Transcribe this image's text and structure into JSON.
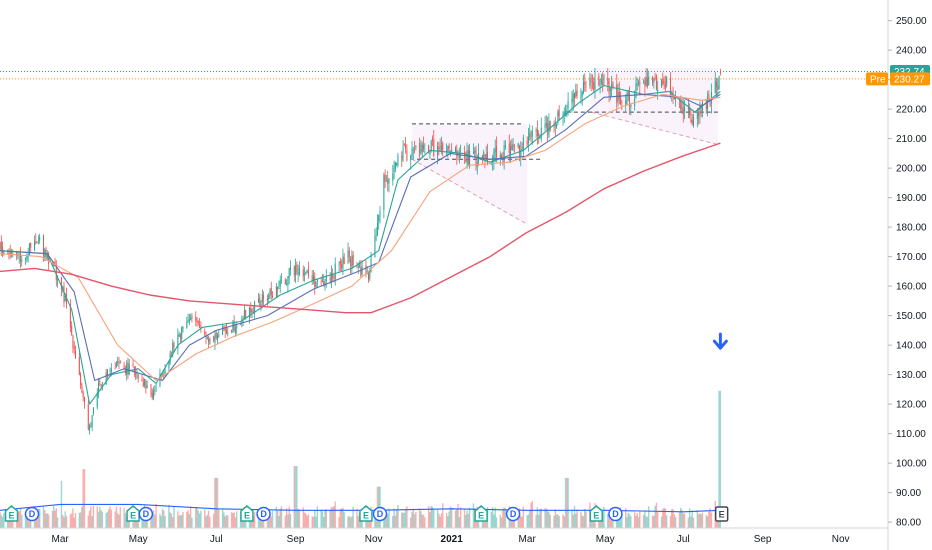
{
  "chart_data": {
    "type": "candlestick",
    "y_axis": {
      "position": "right",
      "ylim": [
        78,
        257
      ],
      "ticks": [
        80,
        90,
        100,
        110,
        120,
        130,
        140,
        150,
        160,
        170,
        180,
        190,
        200,
        210,
        220,
        230,
        240,
        250
      ],
      "tick_labels": [
        "80.00",
        "90.00",
        "100.00",
        "110.00",
        "120.00",
        "130.00",
        "140.00",
        "150.00",
        "160.00",
        "170.00",
        "180.00",
        "190.00",
        "200.00",
        "210.00",
        "220.00",
        "230.00",
        "240.00",
        "250.00"
      ]
    },
    "x_axis": {
      "range": [
        "2020-01-14",
        "2021-12-08"
      ],
      "ticks": [
        {
          "date": "2020-03-01",
          "label": "Mar",
          "bold": false
        },
        {
          "date": "2020-05-01",
          "label": "May",
          "bold": false
        },
        {
          "date": "2020-07-01",
          "label": "Jul",
          "bold": false
        },
        {
          "date": "2020-09-01",
          "label": "Sep",
          "bold": false
        },
        {
          "date": "2020-11-01",
          "label": "Nov",
          "bold": false
        },
        {
          "date": "2021-01-01",
          "label": "2021",
          "bold": true
        },
        {
          "date": "2021-03-01",
          "label": "Mar",
          "bold": false
        },
        {
          "date": "2021-05-01",
          "label": "May",
          "bold": false
        },
        {
          "date": "2021-07-01",
          "label": "Jul",
          "bold": false
        },
        {
          "date": "2021-09-01",
          "label": "Sep",
          "bold": false
        },
        {
          "date": "2021-11-01",
          "label": "Nov",
          "bold": false
        }
      ]
    },
    "price_anchors": [
      [
        "2020-01-14",
        173
      ],
      [
        "2020-01-31",
        170
      ],
      [
        "2020-02-14",
        175
      ],
      [
        "2020-02-24",
        168
      ],
      [
        "2020-03-05",
        155
      ],
      [
        "2020-03-16",
        130
      ],
      [
        "2020-03-23",
        110
      ],
      [
        "2020-03-31",
        127
      ],
      [
        "2020-04-15",
        133
      ],
      [
        "2020-04-30",
        131
      ],
      [
        "2020-05-12",
        123
      ],
      [
        "2020-05-26",
        137
      ],
      [
        "2020-06-09",
        150
      ],
      [
        "2020-06-26",
        142
      ],
      [
        "2020-07-15",
        147
      ],
      [
        "2020-07-31",
        153
      ],
      [
        "2020-08-20",
        160
      ],
      [
        "2020-09-02",
        167
      ],
      [
        "2020-09-21",
        160
      ],
      [
        "2020-10-12",
        170
      ],
      [
        "2020-10-28",
        163
      ],
      [
        "2020-11-09",
        195
      ],
      [
        "2020-11-25",
        205
      ],
      [
        "2020-12-15",
        207
      ],
      [
        "2020-12-31",
        205
      ],
      [
        "2021-01-20",
        203
      ],
      [
        "2021-02-05",
        205
      ],
      [
        "2021-02-26",
        208
      ],
      [
        "2021-03-19",
        215
      ],
      [
        "2021-04-08",
        225
      ],
      [
        "2021-04-28",
        230
      ],
      [
        "2021-05-14",
        221
      ],
      [
        "2021-05-28",
        228
      ],
      [
        "2021-06-15",
        229
      ],
      [
        "2021-06-29",
        222
      ],
      [
        "2021-07-08",
        217
      ],
      [
        "2021-07-15",
        220
      ],
      [
        "2021-07-23",
        225
      ],
      [
        "2021-07-30",
        232.74
      ]
    ],
    "series": [
      {
        "kind": "ma_fast",
        "color": "#26a69a",
        "points": [
          [
            "2020-01-14",
            172
          ],
          [
            "2020-02-20",
            171
          ],
          [
            "2020-03-10",
            152
          ],
          [
            "2020-03-24",
            120
          ],
          [
            "2020-04-10",
            130
          ],
          [
            "2020-05-01",
            132
          ],
          [
            "2020-05-15",
            127
          ],
          [
            "2020-06-01",
            140
          ],
          [
            "2020-06-20",
            146
          ],
          [
            "2020-07-20",
            148
          ],
          [
            "2020-08-20",
            157
          ],
          [
            "2020-09-15",
            162
          ],
          [
            "2020-10-15",
            166
          ],
          [
            "2020-11-05",
            172
          ],
          [
            "2020-11-20",
            196
          ],
          [
            "2020-12-15",
            206
          ],
          [
            "2021-01-10",
            205
          ],
          [
            "2021-01-31",
            202
          ],
          [
            "2021-02-26",
            206
          ],
          [
            "2021-03-20",
            214
          ],
          [
            "2021-04-10",
            222
          ],
          [
            "2021-04-30",
            228
          ],
          [
            "2021-05-31",
            225
          ],
          [
            "2021-06-20",
            226
          ],
          [
            "2021-07-10",
            219
          ],
          [
            "2021-07-30",
            226
          ]
        ]
      },
      {
        "kind": "ma_mid",
        "color": "#5b6fb5",
        "points": [
          [
            "2020-01-14",
            172
          ],
          [
            "2020-02-20",
            171
          ],
          [
            "2020-03-12",
            158
          ],
          [
            "2020-03-28",
            128
          ],
          [
            "2020-04-20",
            132
          ],
          [
            "2020-05-20",
            128
          ],
          [
            "2020-06-10",
            140
          ],
          [
            "2020-07-01",
            145
          ],
          [
            "2020-08-10",
            150
          ],
          [
            "2020-09-15",
            159
          ],
          [
            "2020-10-20",
            165
          ],
          [
            "2020-11-05",
            168
          ],
          [
            "2020-11-30",
            197
          ],
          [
            "2020-12-31",
            205
          ],
          [
            "2021-01-31",
            203
          ],
          [
            "2021-02-28",
            204
          ],
          [
            "2021-03-31",
            213
          ],
          [
            "2021-04-30",
            224
          ],
          [
            "2021-05-31",
            225
          ],
          [
            "2021-06-30",
            224
          ],
          [
            "2021-07-15",
            221
          ],
          [
            "2021-07-30",
            225
          ]
        ]
      },
      {
        "kind": "ma_slow",
        "color": "#f7a27a",
        "points": [
          [
            "2020-01-14",
            171
          ],
          [
            "2020-02-15",
            170
          ],
          [
            "2020-03-15",
            163
          ],
          [
            "2020-04-15",
            140
          ],
          [
            "2020-05-15",
            128
          ],
          [
            "2020-06-15",
            137
          ],
          [
            "2020-07-15",
            143
          ],
          [
            "2020-08-15",
            148
          ],
          [
            "2020-09-15",
            154
          ],
          [
            "2020-10-15",
            160
          ],
          [
            "2020-11-15",
            172
          ],
          [
            "2020-12-15",
            192
          ],
          [
            "2021-01-15",
            201
          ],
          [
            "2021-02-15",
            202
          ],
          [
            "2021-03-15",
            206
          ],
          [
            "2021-04-15",
            215
          ],
          [
            "2021-05-15",
            221
          ],
          [
            "2021-06-15",
            225
          ],
          [
            "2021-07-15",
            223
          ],
          [
            "2021-07-30",
            224
          ]
        ]
      },
      {
        "kind": "ma_long",
        "color": "#e5566b",
        "points": [
          [
            "2020-01-14",
            165
          ],
          [
            "2020-02-10",
            166
          ],
          [
            "2020-03-10",
            164
          ],
          [
            "2020-04-10",
            160
          ],
          [
            "2020-05-10",
            157
          ],
          [
            "2020-06-10",
            155
          ],
          [
            "2020-07-10",
            154
          ],
          [
            "2020-08-10",
            153
          ],
          [
            "2020-09-10",
            152
          ],
          [
            "2020-10-10",
            151
          ],
          [
            "2020-10-30",
            151
          ],
          [
            "2020-11-30",
            156
          ],
          [
            "2020-12-31",
            163
          ],
          [
            "2021-01-31",
            170
          ],
          [
            "2021-02-28",
            178
          ],
          [
            "2021-03-31",
            185
          ],
          [
            "2021-04-30",
            193
          ],
          [
            "2021-05-31",
            199
          ],
          [
            "2021-06-30",
            204
          ],
          [
            "2021-07-30",
            208.5
          ]
        ]
      },
      {
        "kind": "volume_ma",
        "color": "#2962ff",
        "points": [
          [
            "2020-01-14",
            84
          ],
          [
            "2020-03-01",
            86
          ],
          [
            "2020-05-01",
            86
          ],
          [
            "2020-07-01",
            84.5
          ],
          [
            "2020-09-01",
            84
          ],
          [
            "2020-11-01",
            84
          ],
          [
            "2021-01-01",
            84.5
          ],
          [
            "2021-03-01",
            84
          ],
          [
            "2021-05-01",
            84
          ],
          [
            "2021-07-01",
            83.5
          ],
          [
            "2021-07-30",
            84
          ]
        ]
      }
    ],
    "volume_spikes": [
      [
        "2020-03-01",
        94
      ],
      [
        "2020-03-20",
        98
      ],
      [
        "2020-07-01",
        95
      ],
      [
        "2020-09-01",
        99
      ],
      [
        "2020-11-05",
        92
      ],
      [
        "2021-04-01",
        95
      ],
      [
        "2021-07-30",
        124.5
      ]
    ],
    "horizontal_lines": [
      {
        "value": 232.74,
        "color": "#26a69a",
        "style": "dotted"
      },
      {
        "value": 230.27,
        "color": "#ff9800",
        "style": "dotted"
      }
    ],
    "drawings": {
      "pattern_1": {
        "top": 215,
        "bottom": 203,
        "apex_date": "2021-03-01",
        "apex_value": 181,
        "start_date": "2020-12-01",
        "end_date": "2021-03-01"
      },
      "pattern_2": {
        "top": 234,
        "bottom": 219,
        "apex_date": "2021-07-28",
        "apex_value": 208,
        "start_date": "2021-04-20",
        "end_date": "2021-07-28"
      },
      "dashed_levels": [
        {
          "value": 215,
          "from": "2020-12-01",
          "to": "2021-02-26"
        },
        {
          "value": 203,
          "from": "2020-12-05",
          "to": "2021-03-12"
        },
        {
          "value": 219,
          "from": "2021-04-01",
          "to": "2021-07-28"
        }
      ]
    },
    "arrow": {
      "date": "2021-07-30",
      "value": 141,
      "direction": "down",
      "color": "#2962ff"
    },
    "price_tags": [
      {
        "label": "",
        "value": "232.74",
        "color": "#26a69a"
      },
      {
        "label": "Pre",
        "value": "230.27",
        "color": "#ff9800"
      }
    ],
    "events": [
      {
        "date": "2020-01-23",
        "type": "E"
      },
      {
        "date": "2020-02-08",
        "type": "D"
      },
      {
        "date": "2020-04-27",
        "type": "E"
      },
      {
        "date": "2020-05-07",
        "type": "D"
      },
      {
        "date": "2020-07-25",
        "type": "E"
      },
      {
        "date": "2020-08-07",
        "type": "D"
      },
      {
        "date": "2020-10-26",
        "type": "E"
      },
      {
        "date": "2020-11-06",
        "type": "D"
      },
      {
        "date": "2021-01-24",
        "type": "E"
      },
      {
        "date": "2021-02-18",
        "type": "D"
      },
      {
        "date": "2021-04-24",
        "type": "E"
      },
      {
        "date": "2021-05-09",
        "type": "D"
      },
      {
        "date": "2021-07-31",
        "type": "E-upcoming"
      }
    ]
  }
}
